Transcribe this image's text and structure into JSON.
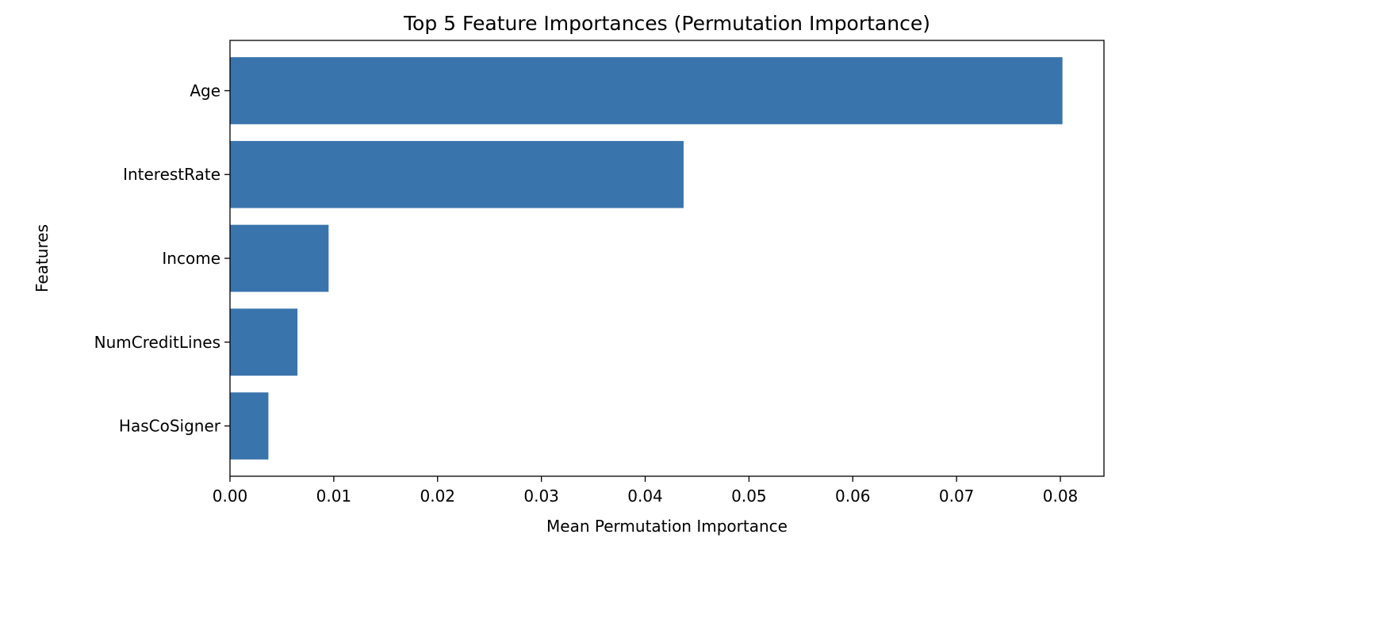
{
  "chart_data": {
    "type": "bar",
    "orientation": "horizontal",
    "title": "Top 5 Feature Importances (Permutation Importance)",
    "xlabel": "Mean Permutation Importance",
    "ylabel": "Features",
    "categories": [
      "Age",
      "InterestRate",
      "Income",
      "NumCreditLines",
      "HasCoSigner"
    ],
    "values": [
      0.0802,
      0.0437,
      0.0095,
      0.0065,
      0.0037
    ],
    "xlim": [
      0,
      0.0842
    ],
    "xticks": [
      0.0,
      0.01,
      0.02,
      0.03,
      0.04,
      0.05,
      0.06,
      0.07,
      0.08
    ],
    "xtick_labels": [
      "0.00",
      "0.01",
      "0.02",
      "0.03",
      "0.04",
      "0.05",
      "0.06",
      "0.07",
      "0.08"
    ],
    "bar_color": "#3a74ad",
    "grid": false,
    "legend": "none"
  }
}
